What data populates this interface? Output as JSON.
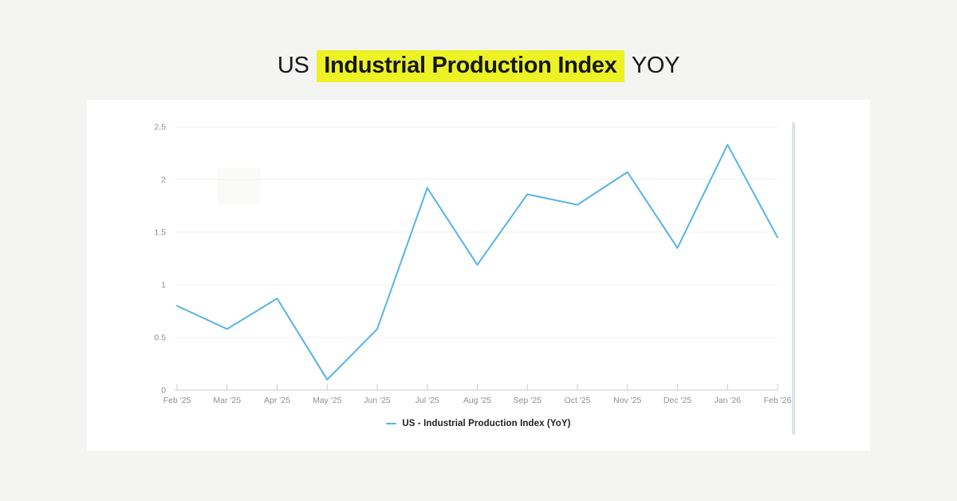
{
  "page": {
    "background_color": "#f4f4f3",
    "card_color": "#ffffff"
  },
  "title": {
    "prefix": "US",
    "highlight": "Industrial Production Index",
    "suffix": "YOY",
    "highlight_color": "#ecf224",
    "text_color": "#17181b"
  },
  "chart_data": {
    "type": "line",
    "title": "US Industrial Production Index YOY",
    "categories": [
      "Feb '25",
      "Mar '25",
      "Apr '25",
      "May '25",
      "Jun '25",
      "Jul '25",
      "Aug '25",
      "Sep '25",
      "Oct '25",
      "Nov '25",
      "Dec '25",
      "Jan '26",
      "Feb '26"
    ],
    "series": [
      {
        "name": "US - Industrial Production Index (YoY)",
        "values": [
          0.8,
          0.58,
          0.87,
          0.1,
          0.58,
          1.92,
          1.19,
          1.86,
          1.76,
          2.07,
          1.35,
          2.33,
          1.45
        ],
        "color": "#56b4e6"
      }
    ],
    "xlabel": "",
    "ylabel": "",
    "ylim": [
      0,
      2.5
    ],
    "yticks": [
      0,
      0.5,
      1,
      1.5,
      2,
      2.5
    ],
    "grid": true,
    "legend_position": "bottom",
    "axis_colors": {
      "tick_label": "#8f8f8f",
      "grid_line": "#f0f0f0",
      "axis_line": "#cccccc"
    }
  }
}
